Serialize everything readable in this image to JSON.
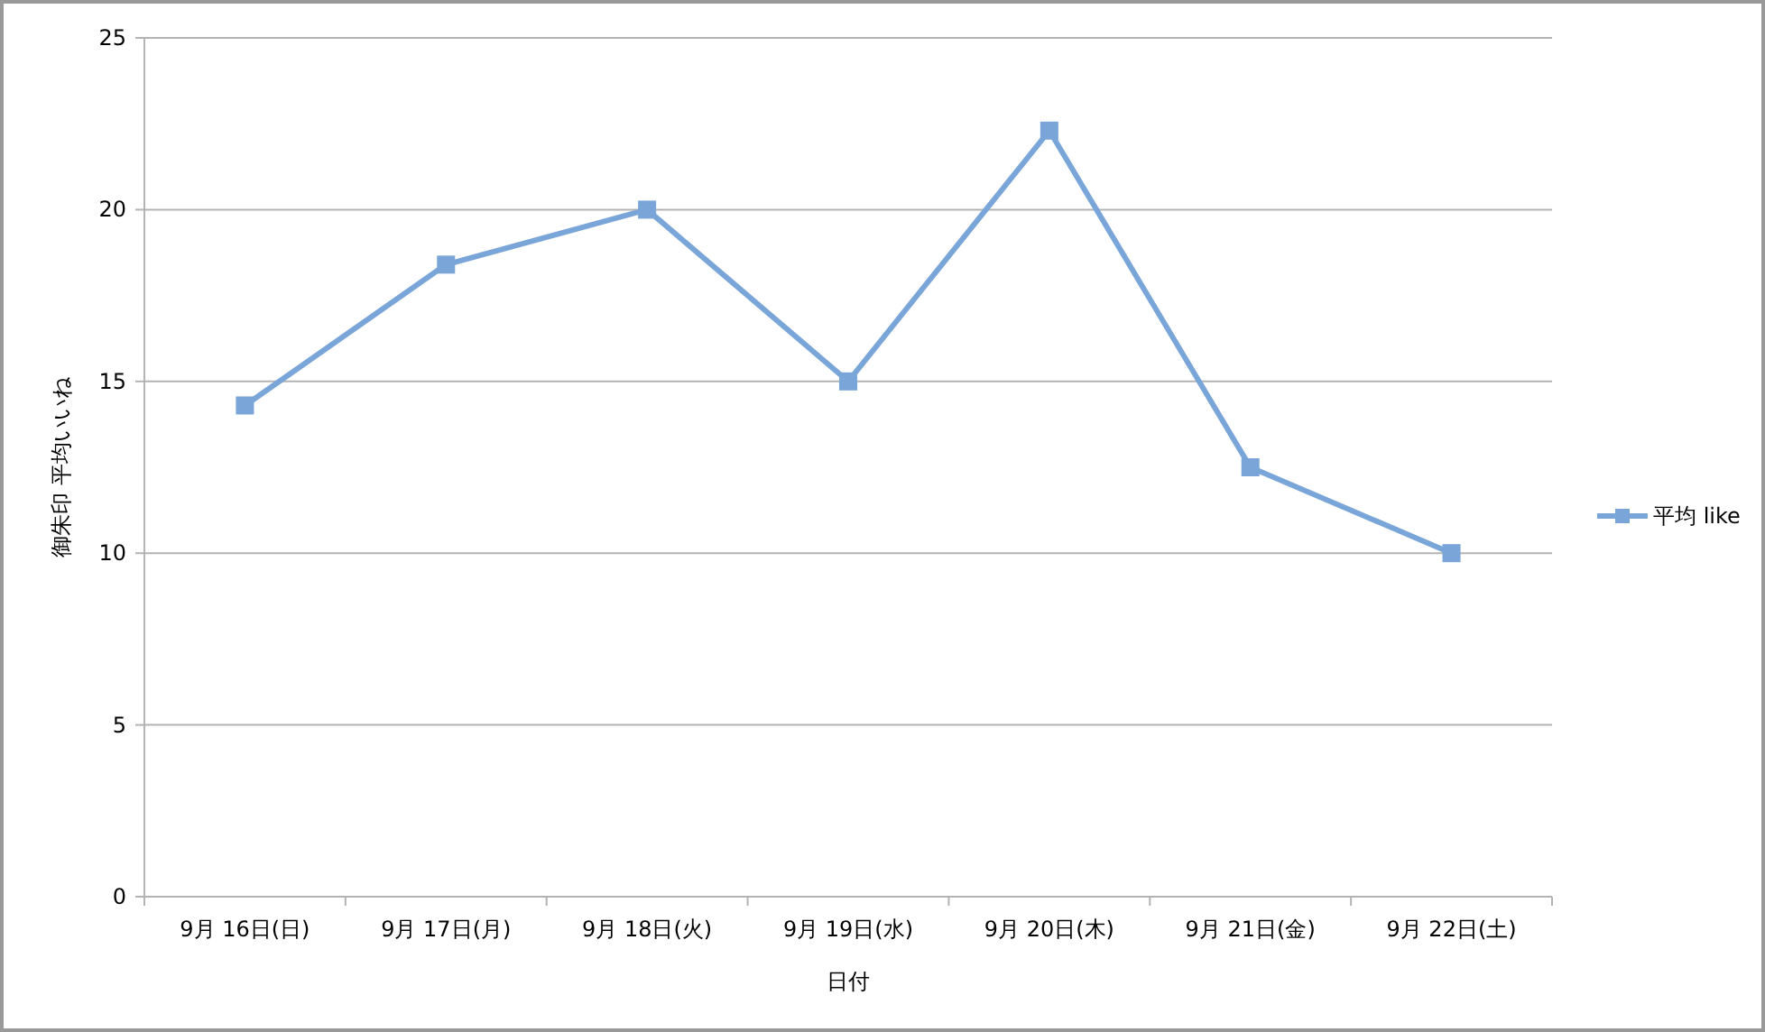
{
  "chart_data": {
    "type": "line",
    "xlabel": "日付",
    "ylabel": "御朱印 平均いいね",
    "categories": [
      "9月 16日(日)",
      "9月 17日(月)",
      "9月 18日(火)",
      "9月 19日(水)",
      "9月 20日(木)",
      "9月 21日(金)",
      "9月 22日(土)"
    ],
    "series": [
      {
        "name": "平均 like",
        "color": "#7aa5d8",
        "values": [
          14.3,
          18.4,
          20,
          15,
          22.3,
          12.5,
          10
        ]
      }
    ],
    "ylim": [
      0,
      25
    ],
    "yticks": [
      0,
      5,
      10,
      15,
      20,
      25
    ],
    "grid": "y",
    "legend": "right",
    "marker": "square",
    "line_style": "solid"
  }
}
